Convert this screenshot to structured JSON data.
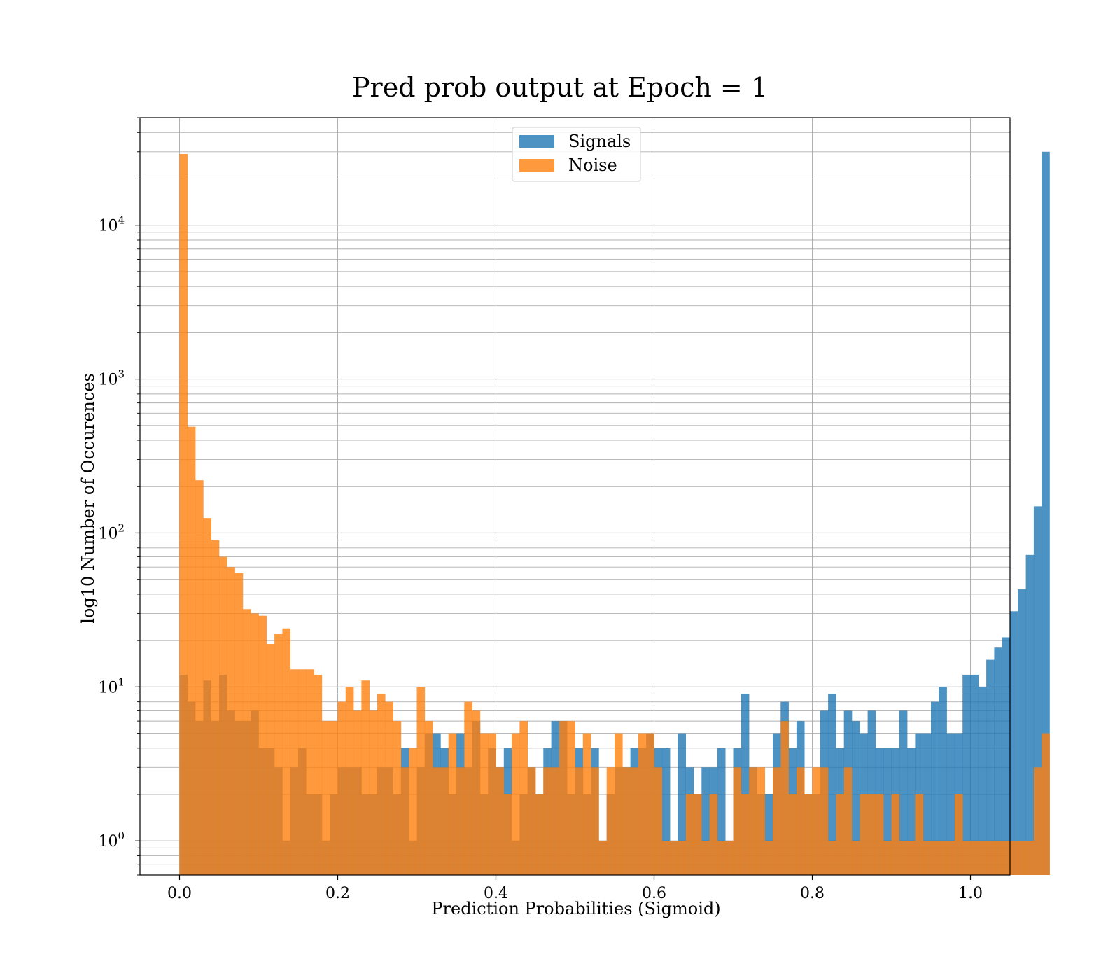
{
  "chart_data": {
    "type": "bar",
    "histogram": true,
    "title": "Pred prob output at Epoch = 1",
    "xlabel": "Prediction Probabilities (Sigmoid)",
    "ylabel": "log10 Number of Occurences",
    "y_scale": "log",
    "xlim": [
      -0.05,
      1.05
    ],
    "ylim": [
      0.6,
      50000
    ],
    "x_ticks": [
      0.0,
      0.2,
      0.4,
      0.6,
      0.8,
      1.0
    ],
    "x_tick_labels": [
      "0.0",
      "0.2",
      "0.4",
      "0.6",
      "0.8",
      "1.0"
    ],
    "y_ticks": [
      1,
      10,
      100,
      1000,
      10000
    ],
    "y_tick_bases": [
      "10",
      "10",
      "10",
      "10",
      "10"
    ],
    "y_tick_exponents": [
      "0",
      "1",
      "2",
      "3",
      "4"
    ],
    "grid": true,
    "legend_position": "top-center",
    "bin_start": 0.0,
    "bin_width": 0.01,
    "series": [
      {
        "name": "Signals",
        "color": "#1f77b4",
        "values": [
          12,
          8,
          6,
          11,
          6,
          12,
          7,
          6,
          6,
          7,
          4,
          4,
          3,
          1,
          3,
          4,
          2,
          2,
          1,
          2,
          3,
          3,
          3,
          2,
          2,
          3,
          3,
          2,
          4,
          1,
          3,
          5,
          5,
          4,
          2,
          5,
          3,
          6,
          2,
          4,
          3,
          4,
          1,
          2,
          3,
          2,
          4,
          6,
          6,
          2,
          4,
          2,
          4,
          1,
          2,
          3,
          3,
          4,
          4,
          5,
          4,
          4,
          1,
          5,
          3,
          2,
          3,
          3,
          4,
          1,
          4,
          9,
          3,
          2,
          2,
          5,
          8,
          4,
          6,
          2,
          2,
          7,
          9,
          4,
          7,
          6,
          5,
          7,
          4,
          4,
          4,
          7,
          4,
          5,
          5,
          8,
          10,
          5,
          5,
          12,
          12,
          10,
          15,
          18,
          21,
          31,
          43,
          72,
          149,
          30000
        ]
      },
      {
        "name": "Noise",
        "color": "#ff7f0e",
        "values": [
          29000,
          490,
          220,
          125,
          90,
          70,
          60,
          55,
          32,
          30,
          29,
          19,
          22,
          24,
          13,
          13,
          13,
          12,
          6,
          6,
          8,
          10,
          7,
          11,
          7,
          9,
          8,
          6,
          3,
          4,
          10,
          6,
          3,
          3,
          5,
          3,
          8,
          7,
          5,
          5,
          3,
          2,
          5,
          6,
          3,
          2,
          3,
          3,
          6,
          6,
          3,
          5,
          3,
          1,
          3,
          5,
          3,
          3,
          5,
          5,
          3,
          1,
          1,
          1,
          2,
          2,
          1,
          2,
          1,
          1,
          3,
          2,
          3,
          3,
          1,
          3,
          6,
          2,
          3,
          2,
          3,
          3,
          1,
          2,
          3,
          1,
          2,
          2,
          2,
          1,
          2,
          1,
          1,
          2,
          1,
          1,
          1,
          1,
          2,
          1,
          1,
          1,
          1,
          1,
          1,
          1,
          1,
          1,
          3,
          5
        ]
      }
    ]
  }
}
